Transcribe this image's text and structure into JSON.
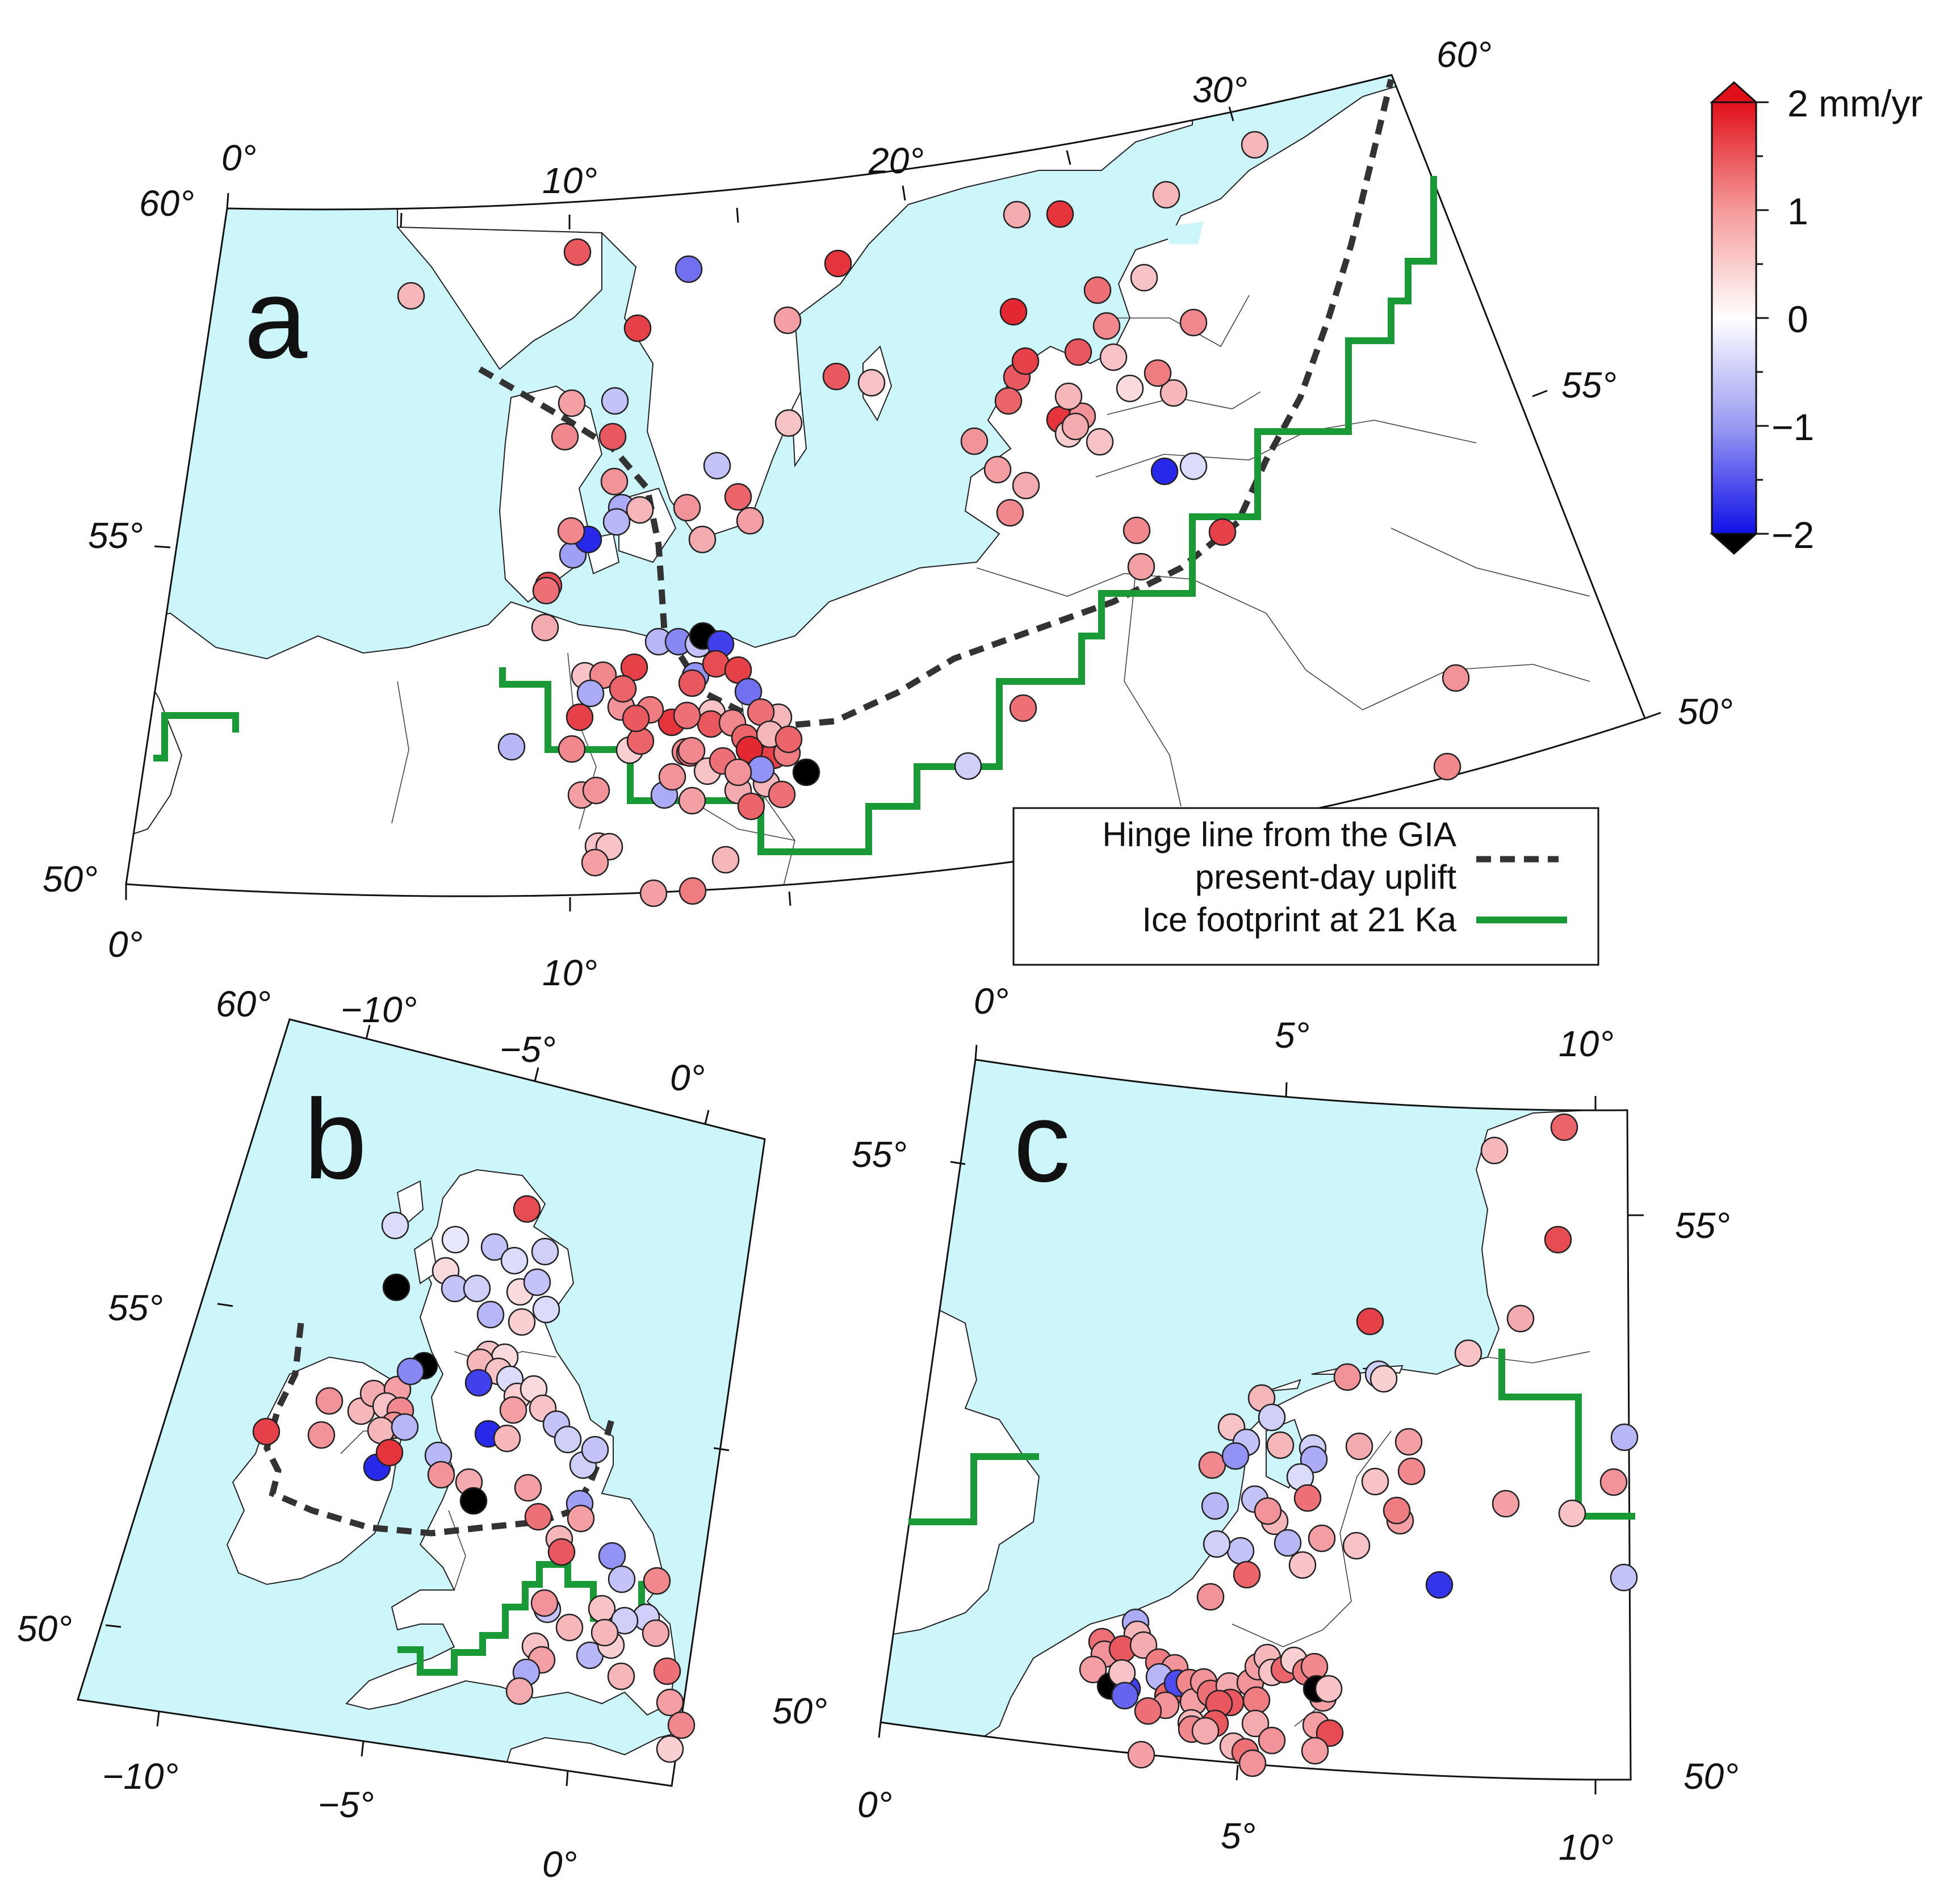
{
  "colors": {
    "sea": "#ccf6fa",
    "land": "#ffffff",
    "hinge_line": "#333333",
    "ice_footprint": "#1a9a36",
    "scale_high": "#e0101a",
    "scale_mid": "#ffffff",
    "scale_low": "#1010e8",
    "out_of_range_low": "#000000"
  },
  "colorbar": {
    "unit_label": "2 mm/yr",
    "ticks": [
      "1",
      "0",
      "−1",
      "−2"
    ],
    "range": [
      -2,
      2
    ]
  },
  "legend": {
    "hinge_label_line1": "Hinge line from the GIA",
    "hinge_label_line2": "present-day uplift",
    "ice_label": "Ice footprint at 21 Ka",
    "hinge_icon": "dashed-line",
    "ice_icon": "solid-green-line"
  },
  "panels": [
    {
      "letter": "a",
      "lon_ticks": [
        "0°",
        "10°",
        "20°",
        "30°",
        "0°",
        "10°"
      ],
      "lat_ticks": [
        "60°",
        "55°",
        "50°",
        "60°",
        "55°",
        "50°"
      ],
      "sites_vertical_rate_mm_yr": [
        1.4,
        0.6,
        -1.2,
        1.6,
        0.8,
        1.7,
        1.7,
        0.5,
        1.4,
        0.5,
        0.7,
        1.7,
        0.6,
        1.8,
        0.5,
        1.2,
        0.6,
        0.3,
        1.4,
        1.0,
        1.0,
        0.6,
        -0.3,
        1.7,
        -1.8,
        1.4,
        0.5,
        1.1,
        0.9,
        1.6,
        1.3,
        0.8,
        1.0,
        0.9,
        0.4,
        0.6,
        0.7,
        0.5,
        0.7,
        1.0,
        0.8,
        1.6,
        0.9,
        1.0,
        0.5,
        1.2,
        -0.4,
        0.6,
        1.4,
        1.6,
        1.0,
        0.8,
        0.5,
        1.2,
        0.9,
        0.8,
        0.6,
        0.4,
        -0.6,
        0.9,
        1.0,
        1.1,
        1.3,
        1.0,
        0.5,
        0.8,
        -0.6,
        -1.0,
        -0.5,
        1.5,
        -0.8,
        -1.8,
        1.0,
        -0.7,
        0.9,
        1.4,
        -0.5,
        0.8,
        1.0,
        0.6,
        1.2,
        -0.6,
        0.7,
        0.5,
        1.0,
        -0.7,
        0.9,
        1.3,
        -0.5,
        0.8,
        0.7,
        -0.9,
        -2.3,
        -1.6,
        1.5,
        1.2,
        1.4,
        1.6,
        1.3,
        1.1,
        1.4,
        1.6,
        -1.2,
        1.2,
        1.0,
        1.5,
        1.3,
        1.6,
        0.6,
        1.1,
        1.3,
        0.6,
        -2.3,
        1.2,
        0.5,
        0.7,
        1.3,
        0.8,
        -0.7,
        0.9,
        1.2,
        1.8,
        -0.9,
        0.9,
        0.7
      ]
    },
    {
      "letter": "b",
      "lon_ticks": [
        "−10°",
        "−5°",
        "0°",
        "−10°",
        "−5°",
        "0°"
      ],
      "lat_ticks": [
        "60°",
        "55°",
        "50°"
      ],
      "sites_vertical_rate_mm_yr": [
        1.5,
        -0.3,
        -0.5,
        -0.4,
        -2.3,
        -0.2,
        0.3,
        -0.5,
        -0.3,
        -2.3,
        -0.4,
        -0.6,
        0.3,
        -0.5,
        -0.3,
        0.4,
        0.5,
        0.3,
        0.6,
        0.5,
        -0.3,
        -1.6,
        0.4,
        0.3,
        0.5,
        0.8,
        -0.5,
        -1.8,
        0.6,
        -0.4,
        1.6,
        0.9,
        0.6,
        0.9,
        -1.8,
        0.7,
        0.8,
        0.5,
        1.0,
        0.9,
        0.6,
        -0.6,
        1.7,
        -0.6,
        -1.0,
        0.9,
        0.7,
        -0.4,
        -0.5,
        -2.3,
        0.8,
        1.2,
        -0.8,
        0.6,
        0.8,
        -0.9,
        1.4,
        -0.5,
        1.0,
        0.5,
        0.6,
        -0.4,
        0.7,
        0.5,
        0.8,
        -0.6,
        0.4,
        0.6,
        -0.5,
        0.9,
        -0.7,
        0.7,
        -0.4,
        0.6,
        1.2,
        0.8,
        1.0,
        0.4
      ]
    },
    {
      "letter": "c",
      "lon_ticks": [
        "0°",
        "5°",
        "10°",
        "0°",
        "5°",
        "10°"
      ],
      "lat_ticks": [
        "55°",
        "50°",
        "55°",
        "50°"
      ],
      "sites_vertical_rate_mm_yr": [
        1.3,
        0.6,
        1.5,
        0.7,
        1.6,
        0.5,
        -0.4,
        0.9,
        0.4,
        0.6,
        -0.4,
        0.5,
        -0.5,
        0.6,
        0.7,
        0.8,
        -0.4,
        -0.7,
        1.0,
        -0.9,
        -0.5,
        0.6,
        0.8,
        1.0,
        0.5,
        -0.3,
        1.2,
        -0.6,
        0.9,
        0.8,
        -0.6,
        0.5,
        1.1,
        0.5,
        -0.5,
        -0.4,
        1.3,
        0.9,
        -1.7,
        0.8,
        0.5,
        -0.5,
        -0.6,
        0.9,
        -0.7,
        0.6,
        1.2,
        0.9,
        1.4,
        0.7,
        1.1,
        0.9,
        0.8,
        -2.3,
        -1.6,
        -0.6,
        1.3,
        -1.5,
        1.0,
        0.8,
        0.9,
        1.2,
        0.7,
        1.4,
        0.9,
        1.1,
        0.8,
        0.6,
        0.5,
        1.3,
        0.4,
        1.1,
        1.0,
        0.8,
        -2.3,
        0.5,
        0.7,
        1.4,
        0.6,
        0.9,
        1.2,
        0.5,
        0.8,
        1.0,
        1.4,
        0.6,
        0.9,
        0.8,
        1.5,
        -1.3,
        0.7,
        1.2,
        0.9,
        0.8
      ]
    }
  ]
}
